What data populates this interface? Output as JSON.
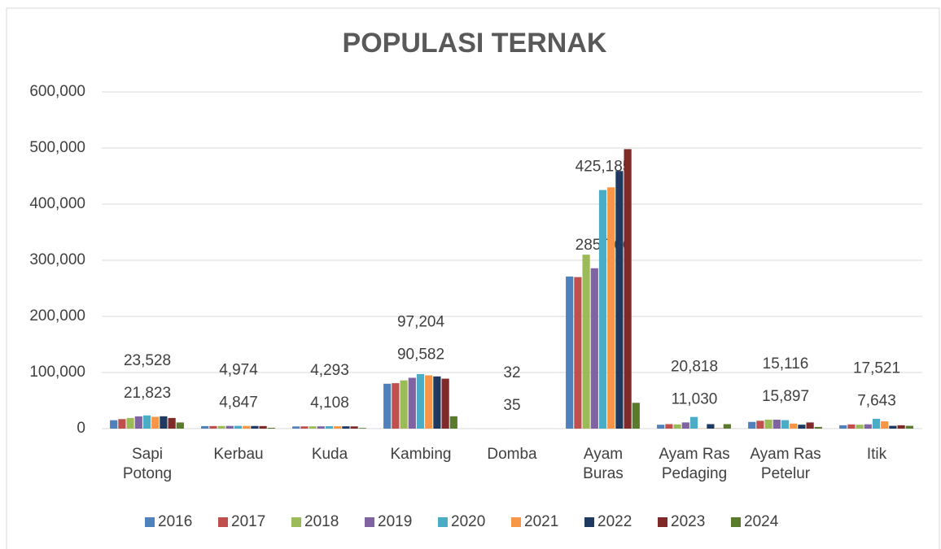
{
  "chart_data": {
    "type": "bar",
    "title": "POPULASI TERNAK",
    "categories": [
      "Sapi Potong",
      "Kerbau",
      "Kuda",
      "Kambing",
      "Domba",
      "Ayam Buras",
      "Ayam Ras Pedaging",
      "Ayam Ras Petelur",
      "Itik"
    ],
    "series": [
      {
        "name": "2016",
        "color": "#4f81bd",
        "values": [
          15000,
          4500,
          3900,
          80000,
          40,
          271000,
          7000,
          12000,
          6000
        ]
      },
      {
        "name": "2017",
        "color": "#c0504d",
        "values": [
          17000,
          4600,
          4000,
          81000,
          38,
          270000,
          8000,
          14000,
          7500
        ]
      },
      {
        "name": "2018",
        "color": "#9bbb59",
        "values": [
          19000,
          4700,
          4050,
          86000,
          36,
          310000,
          7500,
          16000,
          7000
        ]
      },
      {
        "name": "2019",
        "color": "#8064a2",
        "values": [
          21823,
          4847,
          4108,
          90582,
          35,
          285766,
          11030,
          15897,
          7643
        ],
        "value_labels": [
          "21,823",
          "4,847",
          "4,108",
          "90,582",
          "35",
          "285,766",
          "11,030",
          "15,897",
          "7,643"
        ]
      },
      {
        "name": "2020",
        "color": "#4bacc6",
        "values": [
          23528,
          4974,
          4293,
          97204,
          32,
          425185,
          20818,
          15116,
          17521
        ],
        "value_labels": [
          "23,528",
          "4,974",
          "4,293",
          "97,204",
          "32",
          "425,185",
          "20,818",
          "15,116",
          "17,521"
        ]
      },
      {
        "name": "2021",
        "color": "#f79646",
        "values": [
          21000,
          4800,
          4200,
          95000,
          30,
          430000,
          500,
          9000,
          13000
        ]
      },
      {
        "name": "2022",
        "color": "#1f3a60",
        "values": [
          22000,
          4700,
          4100,
          93000,
          30,
          459000,
          8000,
          7000,
          5000
        ]
      },
      {
        "name": "2023",
        "color": "#7f2a28",
        "values": [
          19000,
          4600,
          4000,
          89000,
          28,
          498000,
          500,
          11000,
          6000
        ]
      },
      {
        "name": "2024",
        "color": "#5a7a2c",
        "values": [
          11000,
          1500,
          1200,
          22000,
          10,
          46000,
          8000,
          3000,
          5000
        ]
      }
    ],
    "ylim": [
      0,
      600000
    ],
    "yticks": [
      0,
      {
        "value": 100000,
        "label": "100,000"
      },
      {
        "value": 200000,
        "label": "200,000"
      },
      {
        "value": 300000,
        "label": "300,000"
      },
      {
        "value": 400000,
        "label": "400,000"
      },
      {
        "value": 500000,
        "label": "500,000"
      },
      {
        "value": 600000,
        "label": "600,000"
      }
    ],
    "grid": true,
    "legend": "bottom"
  }
}
